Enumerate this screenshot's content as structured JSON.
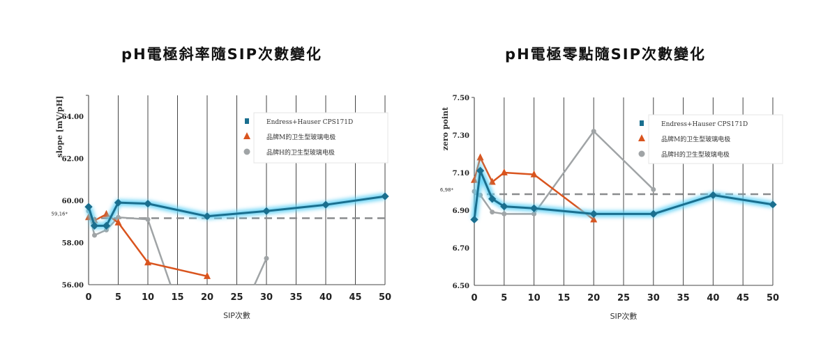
{
  "chart_data": [
    {
      "type": "line",
      "title": "pH電極斜率隨SIP次數變化",
      "xlabel": "SIP次數",
      "ylabel": "slope [mV/pH]",
      "xlim": [
        0,
        50
      ],
      "ylim": [
        56,
        65
      ],
      "xticks": [
        0,
        5,
        10,
        15,
        20,
        25,
        30,
        35,
        40,
        45,
        50
      ],
      "yticks": [
        56,
        58,
        60,
        62,
        64
      ],
      "ytick_labels": [
        "56.00",
        "58.00",
        "60.00",
        "62.00",
        "64.00"
      ],
      "grid": "vertical",
      "legend_position": "top-right",
      "reference_line": {
        "value": 59.16,
        "label": "59,16*"
      },
      "series": [
        {
          "name": "Endress+Hauser CPS171D",
          "color": "#1a6f8f",
          "marker": "square",
          "x": [
            0,
            1,
            3,
            5,
            10,
            20,
            30,
            40,
            50
          ],
          "y": [
            59.7,
            58.8,
            58.8,
            59.9,
            59.85,
            59.25,
            59.5,
            59.8,
            60.2
          ]
        },
        {
          "name": "品牌M的卫生型玻璃电极",
          "color": "#d9541e",
          "marker": "triangle",
          "x": [
            0,
            1,
            3,
            5,
            10,
            20
          ],
          "y": [
            59.2,
            59.05,
            59.35,
            58.95,
            57.05,
            56.4
          ]
        },
        {
          "name": "品牌H的卫生型玻璃电极",
          "color": "#a0a4a6",
          "marker": "circle",
          "x": [
            0,
            1,
            3,
            5,
            10,
            20,
            30
          ],
          "y": [
            59.5,
            58.35,
            58.6,
            59.2,
            59.1,
            51,
            57.25
          ]
        }
      ]
    },
    {
      "type": "line",
      "title": "pH電極零點隨SIP次數變化",
      "xlabel": "SIP次數",
      "ylabel": "zero point",
      "xlim": [
        0,
        50
      ],
      "ylim": [
        6.5,
        7.5
      ],
      "xticks": [
        0,
        5,
        10,
        15,
        20,
        25,
        30,
        35,
        40,
        45,
        50
      ],
      "yticks": [
        6.5,
        6.7,
        6.9,
        7.1,
        7.3,
        7.5
      ],
      "ytick_labels": [
        "6.50",
        "6.70",
        "6.90",
        "7.10",
        "7.30",
        "7.50"
      ],
      "grid": "vertical",
      "legend_position": "top-right",
      "reference_line": {
        "value": 6.985,
        "label": "6,98*"
      },
      "series": [
        {
          "name": "Endress+Hauser CPS171D",
          "color": "#1a6f8f",
          "marker": "square",
          "x": [
            0,
            1,
            3,
            5,
            10,
            20,
            30,
            40,
            50
          ],
          "y": [
            6.85,
            7.11,
            6.96,
            6.92,
            6.91,
            6.88,
            6.88,
            6.98,
            6.93
          ]
        },
        {
          "name": "品牌M的卫生型玻璃电极",
          "color": "#d9541e",
          "marker": "triangle",
          "x": [
            0,
            1,
            3,
            5,
            10,
            20
          ],
          "y": [
            7.06,
            7.18,
            7.05,
            7.1,
            7.09,
            6.85
          ]
        },
        {
          "name": "品牌H的卫生型玻璃电极",
          "color": "#a0a4a6",
          "marker": "circle",
          "x": [
            0,
            1,
            3,
            5,
            10,
            20,
            30
          ],
          "y": [
            7.0,
            6.98,
            6.89,
            6.88,
            6.88,
            7.32,
            7.01
          ]
        }
      ]
    }
  ]
}
